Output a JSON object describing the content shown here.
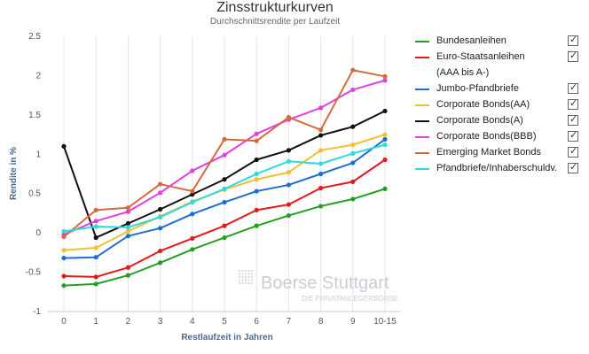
{
  "chart_data": {
    "type": "line",
    "title": "Zinsstrukturkurven",
    "subtitle": "Durchschnittsrendite per Laufzeit",
    "xlabel": "Restlaufzeit in Jahren",
    "ylabel": "Rendite in %",
    "categories": [
      "0",
      "1",
      "2",
      "3",
      "4",
      "5",
      "6",
      "7",
      "8",
      "9",
      "10-15"
    ],
    "yticks": [
      "-1",
      "-0.5",
      "0",
      "0.5",
      "1",
      "1.5",
      "2",
      "2.5"
    ],
    "ylim": [
      -1,
      2.5
    ],
    "grid": "vertical",
    "legend_position": "right",
    "series": [
      {
        "name": "Bundesanleihen",
        "color": "#22a022",
        "values": [
          -0.67,
          -0.65,
          -0.54,
          -0.38,
          -0.21,
          -0.06,
          0.09,
          0.22,
          0.34,
          0.43,
          0.56
        ]
      },
      {
        "name": "Euro-Staatsanleihen",
        "name_line2": "(AAA bis A-)",
        "color": "#e41a1c",
        "values": [
          -0.55,
          -0.56,
          -0.44,
          -0.23,
          -0.07,
          0.09,
          0.29,
          0.36,
          0.57,
          0.65,
          0.93
        ]
      },
      {
        "name": "Jumbo-Pfandbriefe",
        "color": "#1f6fd0",
        "values": [
          -0.32,
          -0.31,
          -0.04,
          0.06,
          0.24,
          0.39,
          0.53,
          0.61,
          0.75,
          0.89,
          1.19
        ]
      },
      {
        "name": "Corporate Bonds(AA)",
        "color": "#f0c030",
        "values": [
          -0.22,
          -0.19,
          0.02,
          0.21,
          0.4,
          0.55,
          0.68,
          0.77,
          1.05,
          1.12,
          1.25
        ]
      },
      {
        "name": "Corporate Bonds(A)",
        "color": "#111111",
        "values": [
          1.1,
          -0.06,
          0.12,
          0.3,
          0.49,
          0.68,
          0.93,
          1.05,
          1.24,
          1.35,
          1.55
        ]
      },
      {
        "name": "Corporate Bonds(BBB)",
        "color": "#e040e0",
        "values": [
          -0.02,
          0.15,
          0.27,
          0.51,
          0.79,
          0.99,
          1.26,
          1.44,
          1.59,
          1.82,
          1.94
        ]
      },
      {
        "name": "Emerging Market Bonds",
        "color": "#d46a40",
        "values": [
          -0.05,
          0.29,
          0.32,
          0.62,
          0.53,
          1.19,
          1.17,
          1.47,
          1.31,
          2.07,
          1.99
        ]
      },
      {
        "name": "Pfandbriefe/Inhaberschuldv.",
        "color": "#30d8e0",
        "values": [
          0.02,
          0.08,
          0.07,
          0.2,
          0.39,
          0.56,
          0.75,
          0.91,
          0.88,
          1.01,
          1.12
        ]
      }
    ]
  },
  "legend": {
    "checkmark": "☑"
  },
  "watermark": {
    "brand": "Boerse Stuttgart",
    "tagline": "DIE PRIVATANLEGERBÖRSE"
  }
}
